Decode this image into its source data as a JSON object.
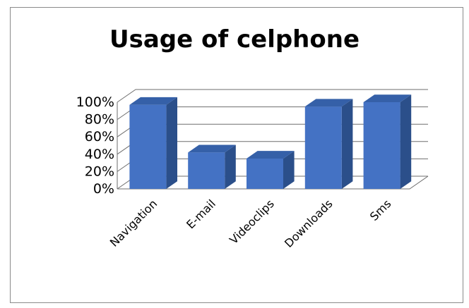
{
  "chart_data": {
    "type": "bar",
    "title": "Usage of celphone",
    "categories": [
      "Navigation",
      "E-mail",
      "Videoclips",
      "Downloads",
      "Sms"
    ],
    "values": [
      97,
      42,
      35,
      95,
      100
    ],
    "y_unit": "%",
    "ylim": [
      0,
      100
    ],
    "yticks": [
      "0%",
      "20%",
      "40%",
      "60%",
      "80%",
      "100%"
    ],
    "xlabel": "",
    "ylabel": "",
    "grid": true,
    "legend": "none",
    "style": "3d-column",
    "colors": {
      "bar_front": "#4472c4",
      "bar_side": "#2b4f8a",
      "bar_top": "#3560a8",
      "grid": "#6e6e6e",
      "frame": "#8a8a8a"
    }
  }
}
